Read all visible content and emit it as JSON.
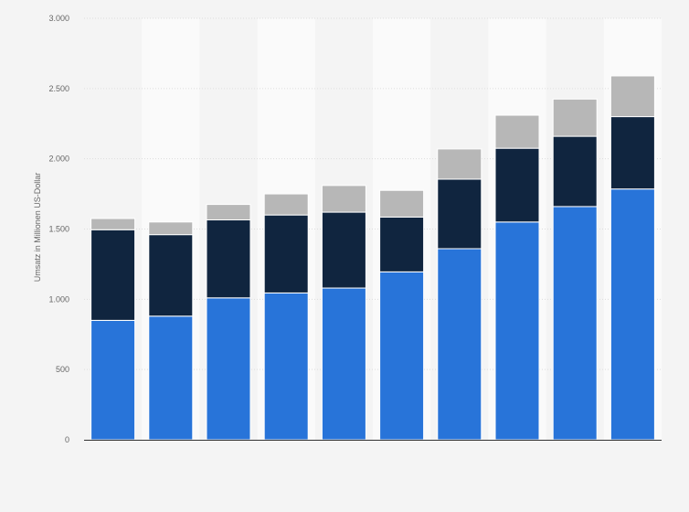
{
  "chart_data": {
    "type": "bar",
    "stacked": true,
    "title": "",
    "xlabel": "",
    "ylabel": "Umsatz in Millionen US-Dollar",
    "ylim": [
      0,
      3000
    ],
    "yticks": [
      0,
      500,
      1000,
      1500,
      2000,
      2500,
      3000
    ],
    "ytick_labels": [
      "0",
      "500",
      "1.000",
      "1.500",
      "2.000",
      "2.500",
      "3.000"
    ],
    "grid": true,
    "legend": "none",
    "categories": [
      "",
      "",
      "",
      "",
      "",
      "",
      "",
      "",
      "",
      ""
    ],
    "series": [
      {
        "color": "#2874d9",
        "values": [
          850,
          880,
          1010,
          1045,
          1080,
          1195,
          1360,
          1550,
          1660,
          1785
        ]
      },
      {
        "color": "#10253f",
        "values": [
          645,
          580,
          555,
          555,
          540,
          390,
          495,
          525,
          500,
          515
        ]
      },
      {
        "color": "#b7b7b7",
        "values": [
          80,
          90,
          110,
          150,
          190,
          190,
          215,
          235,
          265,
          290
        ]
      }
    ],
    "colors": {
      "background": "#f4f4f4",
      "band": "#fafafa",
      "grid": "#dddddd",
      "axis": "#333333"
    }
  }
}
